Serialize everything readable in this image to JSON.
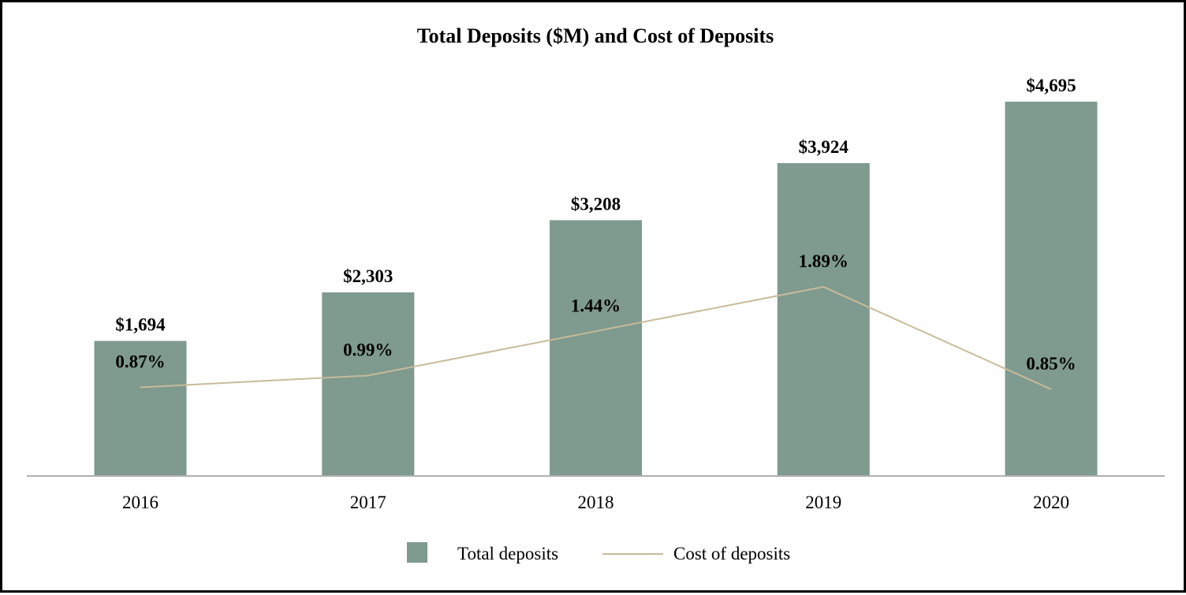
{
  "chart_data": {
    "type": "bar",
    "title": "Total Deposits ($M) and Cost of Deposits",
    "categories": [
      "2016",
      "2017",
      "2018",
      "2019",
      "2020"
    ],
    "series": [
      {
        "name": "Total deposits",
        "kind": "bar",
        "values": [
          1694,
          2303,
          3208,
          3924,
          4695
        ],
        "labels": [
          "$1,694",
          "$2,303",
          "$3,208",
          "$3,924",
          "$4,695"
        ],
        "color": "#7F9A8E"
      },
      {
        "name": "Cost of deposits",
        "kind": "line",
        "values": [
          0.87,
          0.99,
          1.44,
          1.89,
          0.85
        ],
        "labels": [
          "0.87%",
          "0.99%",
          "1.44%",
          "1.89%",
          "0.85%"
        ],
        "color": "#C8BB9A"
      }
    ],
    "xlabel": "",
    "ylabel": "",
    "ylim_bars": [
      0,
      4695
    ],
    "ylim_line": [
      0.85,
      1.89
    ],
    "gridlines": false,
    "legend_position": "bottom-center"
  },
  "colors": {
    "axis": "#B0B0B0",
    "border": "#000000",
    "background": "#FFFFFF"
  }
}
